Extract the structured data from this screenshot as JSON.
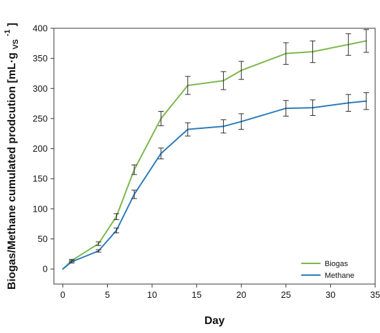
{
  "chart_data": {
    "type": "line",
    "title": "",
    "xlabel": "Day",
    "ylabel": {
      "prefix": "Biogas/Methane cumulated prodcution [mL·g",
      "subscript": "VS",
      "superscript": "-1",
      "suffix": "]"
    },
    "xlim": [
      -1,
      35
    ],
    "ylim": [
      -25,
      400
    ],
    "xticks": [
      0,
      5,
      10,
      15,
      20,
      25,
      30,
      35
    ],
    "yticks": [
      0,
      50,
      100,
      150,
      200,
      250,
      300,
      350,
      400
    ],
    "x": [
      0,
      1,
      4,
      6,
      8,
      11,
      14,
      18,
      20,
      25,
      28,
      32,
      34
    ],
    "series": [
      {
        "name": "Biogas",
        "color": "#7ab648",
        "values": [
          0,
          14,
          42,
          87,
          165,
          250,
          305,
          313,
          330,
          358,
          361,
          373,
          379
        ],
        "errors": [
          0,
          2,
          3,
          5,
          8,
          12,
          15,
          15,
          15,
          18,
          18,
          18,
          19
        ]
      },
      {
        "name": "Methane",
        "color": "#2b7bba",
        "values": [
          0,
          12,
          30,
          64,
          124,
          192,
          232,
          237,
          245,
          267,
          268,
          276,
          279
        ],
        "errors": [
          0,
          2,
          2,
          4,
          7,
          9,
          11,
          11,
          13,
          13,
          13,
          14,
          14
        ]
      }
    ],
    "grid": false,
    "legend_position": "bottom-right",
    "error_bar_color": "#2a2a2a"
  }
}
